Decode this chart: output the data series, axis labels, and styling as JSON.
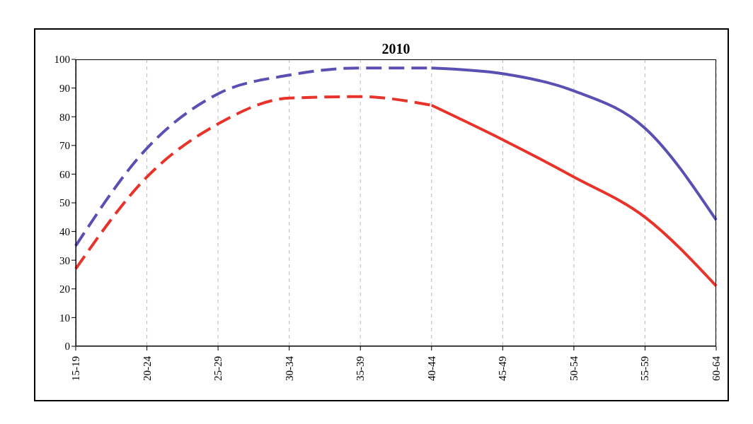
{
  "chart_data": {
    "type": "line",
    "title": "2010",
    "categories": [
      "15-19",
      "20-24",
      "25-29",
      "30-34",
      "35-39",
      "40-44",
      "45-49",
      "50-54",
      "55-59",
      "60-64"
    ],
    "series": [
      {
        "color": "#5a50b4",
        "line_style": "dashed",
        "values": [
          35,
          69,
          88,
          94.5,
          97,
          97,
          null,
          null,
          null,
          null
        ]
      },
      {
        "color": "#5a50b4",
        "line_style": "solid",
        "values": [
          null,
          null,
          null,
          null,
          null,
          97,
          95,
          89,
          76,
          44
        ]
      },
      {
        "color": "#e8332a",
        "line_style": "dashed",
        "values": [
          27,
          59,
          77.5,
          86.5,
          87,
          84,
          null,
          null,
          null,
          null
        ]
      },
      {
        "color": "#e8332a",
        "line_style": "solid",
        "values": [
          null,
          null,
          null,
          null,
          null,
          84,
          72,
          59,
          45,
          21
        ]
      }
    ],
    "ylim": [
      0,
      100
    ],
    "yticks": [
      0,
      10,
      20,
      30,
      40,
      50,
      60,
      70,
      80,
      90,
      100
    ],
    "grid": "x",
    "marker": "none"
  }
}
